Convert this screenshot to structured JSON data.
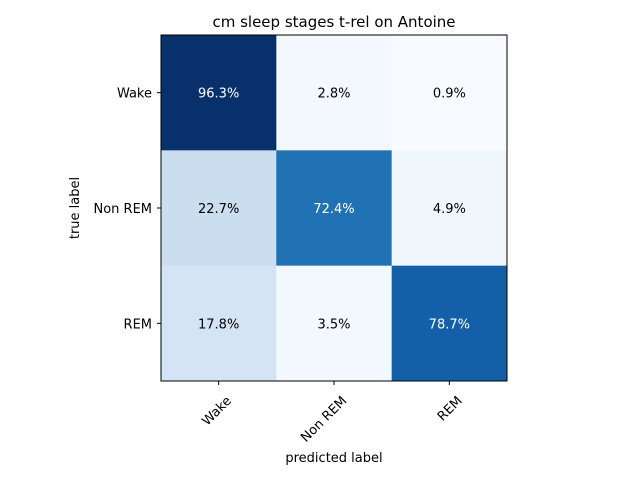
{
  "chart_data": {
    "type": "heatmap",
    "title": "cm sleep stages t-rel on Antoine",
    "xlabel": "predicted label",
    "ylabel": "true label",
    "x_categories": [
      "Wake",
      "Non REM",
      "REM"
    ],
    "y_categories": [
      "Wake",
      "Non REM",
      "REM"
    ],
    "values": [
      [
        96.3,
        2.8,
        0.9
      ],
      [
        22.7,
        72.4,
        4.9
      ],
      [
        17.8,
        3.5,
        78.7
      ]
    ],
    "cell_labels": [
      [
        "96.3%",
        "2.8%",
        "0.9%"
      ],
      [
        "22.7%",
        "72.4%",
        "4.9%"
      ],
      [
        "17.8%",
        "3.5%",
        "78.7%"
      ]
    ],
    "colormap": "Blues",
    "colors": {
      "low": "#f7fbff",
      "high": "#08306b",
      "text_light": "#ffffff",
      "text_dark": "#000000"
    },
    "grid": false,
    "x_tick_rotation": "45 degrees"
  }
}
